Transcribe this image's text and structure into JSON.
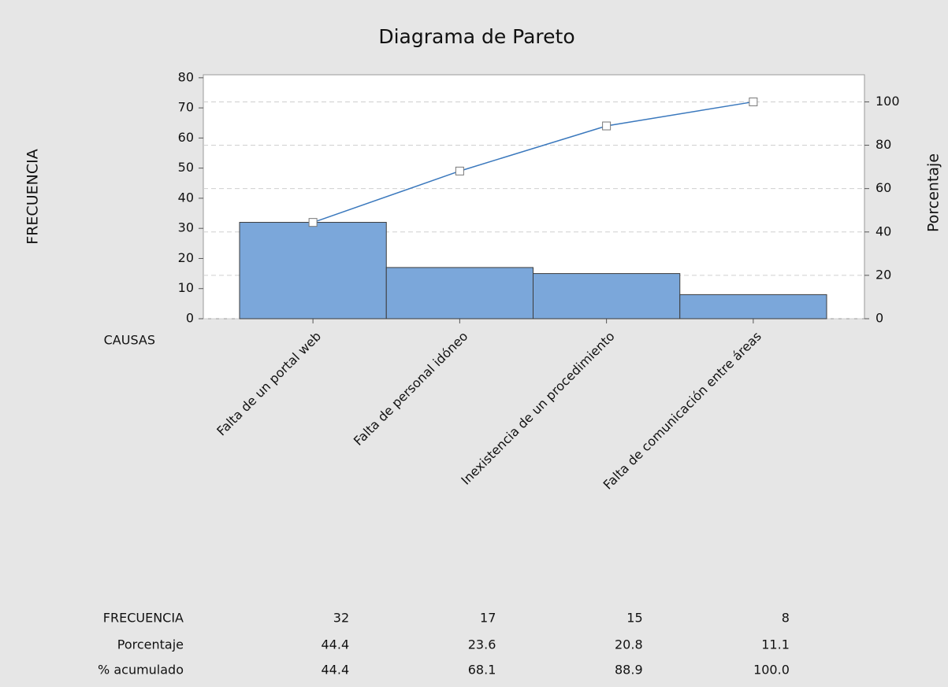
{
  "chart_data": {
    "type": "pareto",
    "title": "Diagrama de Pareto",
    "xlabel": "CAUSAS",
    "ylabel": "FRECUENCIA",
    "y2label": "Porcentaje",
    "categories": [
      "Falta de un portal web",
      "Falta de personal idóneo",
      "Inexistencia de un procedimiento",
      "Falta de comunicación entre áreas"
    ],
    "series": [
      {
        "name": "FRECUENCIA",
        "type": "bar",
        "color": "#7ba7da",
        "values": [
          32,
          17,
          15,
          8
        ]
      },
      {
        "name": "Porcentaje",
        "type": "table",
        "values": [
          44.4,
          23.6,
          20.8,
          11.1
        ]
      },
      {
        "name": "% acumulado",
        "type": "line",
        "axis": "y2",
        "color": "#3a78bd",
        "values": [
          44.4,
          68.1,
          88.9,
          100
        ],
        "value_labels": [
          "44.4",
          "68.1",
          "88.9",
          "100.0"
        ]
      }
    ],
    "ylim": [
      0,
      81
    ],
    "yticks": [
      0,
      10,
      20,
      30,
      40,
      50,
      60,
      70,
      80
    ],
    "y2lim": [
      0,
      112.5
    ],
    "y2ticks": [
      0,
      20,
      40,
      60,
      80,
      100
    ],
    "grid": "y2"
  }
}
